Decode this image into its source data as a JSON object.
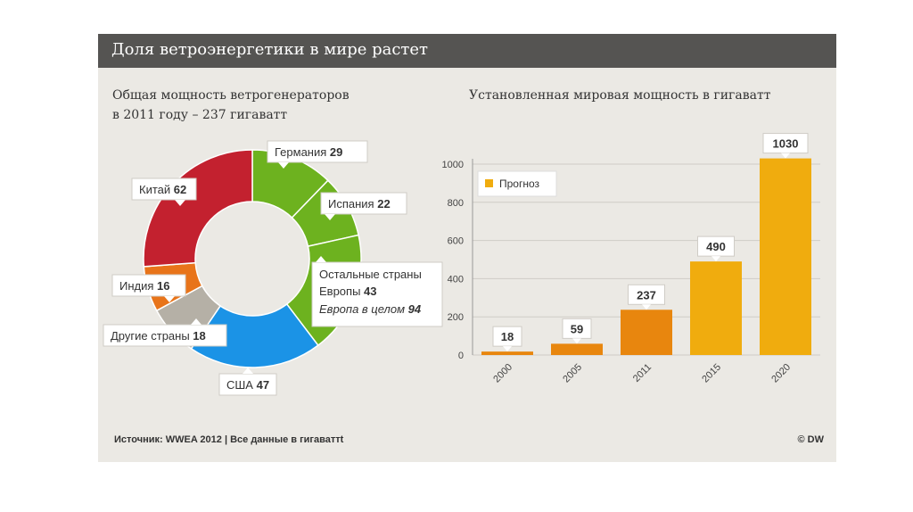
{
  "header": {
    "title": "Доля ветроэнергетики в мире растет"
  },
  "pie_subtitle": {
    "line1": "Общая мощность ветрогенераторов",
    "line2": "в 2011 году – 237 гигаватт"
  },
  "bar_subtitle": "Установленная мировая мощность в гигаватт",
  "footer": {
    "source": "Источник: WWEA 2012 | Все данные в гигаваттt",
    "copyright": "© DW"
  },
  "colors": {
    "header_bg": "#555452",
    "panel_bg": "#ebe9e4",
    "forecast": "#f0ac0e",
    "actual": "#e8860e"
  },
  "chart_data": [
    {
      "type": "pie",
      "title": "Общая мощность ветрогенераторов в 2011 году – 237 гигаватт",
      "slices": [
        {
          "name": "Германия",
          "value": 29,
          "color": "#6db21f"
        },
        {
          "name": "Испания",
          "value": 22,
          "color": "#6db21f"
        },
        {
          "name": "Остальные страны Европы",
          "value": 43,
          "color": "#6db21f"
        },
        {
          "name": "США",
          "value": 47,
          "color": "#1b93e6"
        },
        {
          "name": "Другие страны",
          "value": 18,
          "color": "#b5b0a6"
        },
        {
          "name": "Индия",
          "value": 16,
          "color": "#e8741a"
        },
        {
          "name": "Китай",
          "value": 62,
          "color": "#c3212f"
        }
      ],
      "europe_total": {
        "label": "Европа в целом",
        "value": 94
      }
    },
    {
      "type": "bar",
      "title": "Установленная мировая мощность в гигаватт",
      "categories": [
        "2000",
        "2005",
        "2011",
        "2015",
        "2020"
      ],
      "values": [
        18,
        59,
        237,
        490,
        1030
      ],
      "forecast": [
        false,
        false,
        false,
        true,
        true
      ],
      "legend": "Прогноз",
      "ylim": [
        0,
        1000
      ],
      "yticks": [
        0,
        200,
        400,
        600,
        800,
        1000
      ]
    }
  ]
}
